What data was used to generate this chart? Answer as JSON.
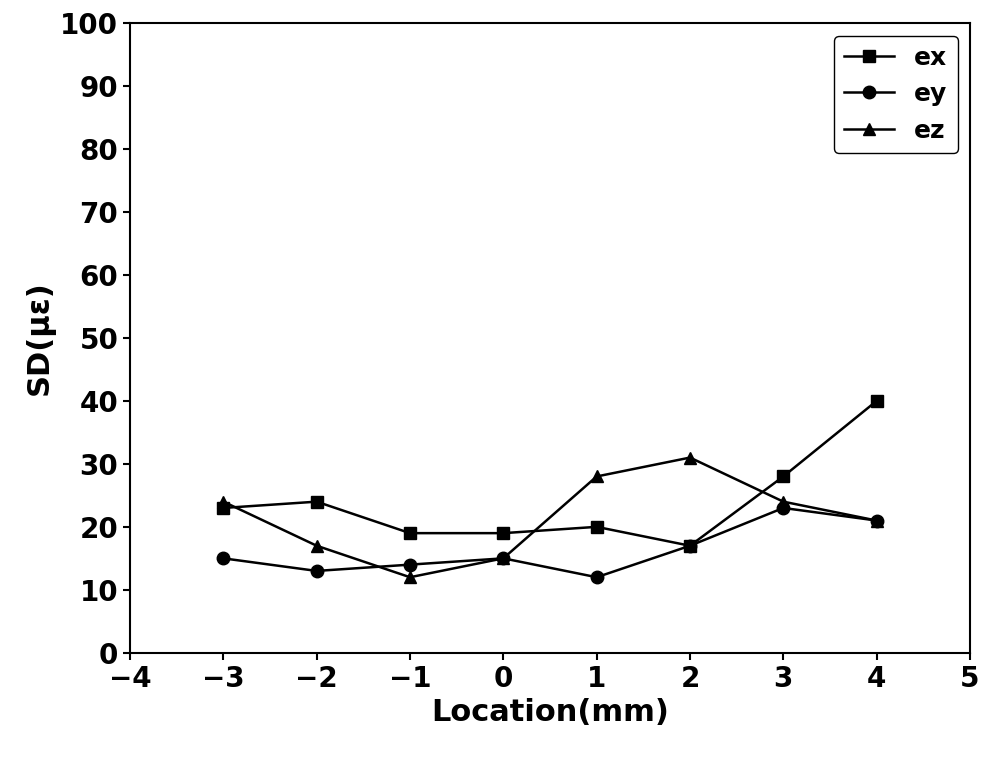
{
  "x": [
    -3,
    -2,
    -1,
    0,
    1,
    2,
    3,
    4
  ],
  "ex": [
    23,
    24,
    19,
    19,
    20,
    17,
    28,
    40
  ],
  "ey": [
    15,
    13,
    14,
    15,
    12,
    17,
    23,
    21
  ],
  "ez": [
    24,
    17,
    12,
    15,
    28,
    31,
    24,
    21
  ],
  "xlabel": "Location(mm)",
  "ylabel": "SD(με)",
  "xlim": [
    -4,
    5
  ],
  "ylim": [
    0,
    100
  ],
  "xticks": [
    -4,
    -3,
    -2,
    -1,
    0,
    1,
    2,
    3,
    4,
    5
  ],
  "yticks": [
    0,
    10,
    20,
    30,
    40,
    50,
    60,
    70,
    80,
    90,
    100
  ],
  "legend_labels": [
    "ex",
    "ey",
    "ez"
  ],
  "line_color": "#000000",
  "marker_ex": "s",
  "marker_ey": "o",
  "marker_ez": "^",
  "markersize": 9,
  "linewidth": 1.8,
  "background_color": "#ffffff",
  "label_fontsize": 22,
  "tick_fontsize": 20,
  "legend_fontsize": 18
}
